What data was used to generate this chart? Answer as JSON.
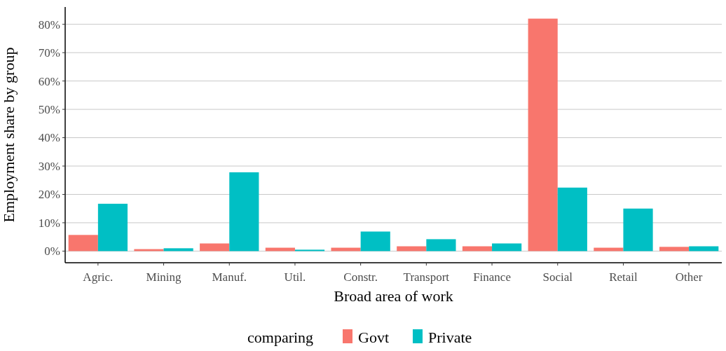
{
  "chart_data": {
    "type": "bar",
    "xlabel": "Broad area of work",
    "ylabel": "Employment share by group",
    "legend_title": "comparing",
    "legend": "bottom",
    "grid": "y",
    "categories": [
      "Agric.",
      "Mining",
      "Manuf.",
      "Util.",
      "Constr.",
      "Transport",
      "Finance",
      "Social",
      "Retail",
      "Other"
    ],
    "ylim": [
      -4.1,
      86.1
    ],
    "yticks": [
      {
        "value": 0,
        "label": "0%"
      },
      {
        "value": 10,
        "label": "10%"
      },
      {
        "value": 20,
        "label": "20%"
      },
      {
        "value": 30,
        "label": "30%"
      },
      {
        "value": 40,
        "label": "40%"
      },
      {
        "value": 50,
        "label": "50%"
      },
      {
        "value": 60,
        "label": "60%"
      },
      {
        "value": 70,
        "label": "70%"
      },
      {
        "value": 80,
        "label": "80%"
      }
    ],
    "series": [
      {
        "name": "Govt",
        "color": "#f8766d",
        "values": [
          5.7,
          0.7,
          2.7,
          1.2,
          1.2,
          1.7,
          1.7,
          82,
          1.2,
          1.5
        ]
      },
      {
        "name": "Private",
        "color": "#00bfc4",
        "values": [
          16.7,
          1.0,
          27.8,
          0.5,
          6.9,
          4.2,
          2.7,
          22.4,
          15.0,
          1.7
        ]
      }
    ]
  }
}
